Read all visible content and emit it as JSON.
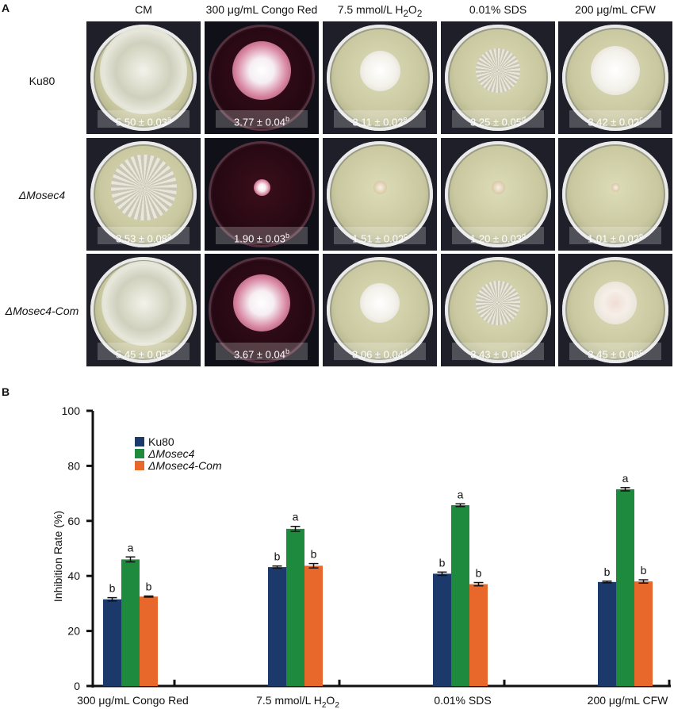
{
  "panel_a": {
    "letter": "A",
    "column_headers": [
      "CM",
      "300 μg/mL Congo Red",
      "7.5 mmol/L H",
      "0.01% SDS",
      "200 μg/mL CFW"
    ],
    "h2o2_header": {
      "prefix": "7.5 mmol/L H",
      "sub1": "2",
      "mid": "O",
      "sub2": "2"
    },
    "rows": [
      {
        "label": "Ku80",
        "italic": false,
        "values": [
          "5.50 ± 0.03",
          "3.77 ± 0.04",
          "3.11 ± 0.02",
          "3.25 ± 0.05",
          "3.42 ± 0.02"
        ],
        "letters": [
          "a",
          "b",
          "e",
          "d",
          "c"
        ]
      },
      {
        "label": "ΔMosec4",
        "italic": true,
        "values": [
          "3.53 ± 0.08",
          "1.90 ± 0.03",
          "1.51 ± 0.02",
          "1.20 ± 0.03",
          "1.01 ± 0.02"
        ],
        "letters": [
          "a",
          "b",
          "c",
          "d",
          "e"
        ]
      },
      {
        "label": "ΔMosec4-Com",
        "italic": true,
        "values": [
          "5.45 ± 0.05",
          "3.67 ± 0.04",
          "3.06 ± 0.04",
          "3.43 ± 0.08",
          "3.45 ± 0.08"
        ],
        "letters": [
          "a",
          "b",
          "d",
          "c",
          "c"
        ]
      }
    ]
  },
  "panel_b": {
    "letter": "B"
  },
  "chart_data": {
    "type": "bar",
    "title": "",
    "xlabel": "",
    "ylabel": "Inhibition Rate (%)",
    "ylim": [
      0,
      100
    ],
    "yticks": [
      0,
      20,
      40,
      60,
      80,
      100
    ],
    "grid": false,
    "legend_position": "top-left",
    "categories": [
      "300 μg/mL Congo Red",
      "7.5 mmol/L H2O2",
      "0.01% SDS",
      "200 μg/mL CFW"
    ],
    "category_labels": [
      {
        "text": "300 μg/mL Congo Red"
      },
      {
        "text": "7.5 mmol/L H",
        "sub1": "2",
        "mid": "O",
        "sub2": "2"
      },
      {
        "text": "0.01% SDS"
      },
      {
        "text": "200 μg/mL CFW"
      }
    ],
    "series": [
      {
        "name": "Ku80",
        "italic": false,
        "color": "#1b3a6b",
        "values": [
          31.5,
          43.2,
          40.8,
          37.8
        ],
        "errors": [
          0.6,
          0.4,
          0.6,
          0.3
        ],
        "letters": [
          "b",
          "b",
          "b",
          "b"
        ]
      },
      {
        "name": "ΔMosec4",
        "italic": true,
        "color": "#1e8a3e",
        "values": [
          46.0,
          57.1,
          65.7,
          71.5
        ],
        "errors": [
          0.9,
          0.9,
          0.5,
          0.6
        ],
        "letters": [
          "a",
          "a",
          "a",
          "a"
        ]
      },
      {
        "name": "ΔMosec4-Com",
        "italic": true,
        "color": "#e8672a",
        "values": [
          32.5,
          43.7,
          37.0,
          38.0
        ],
        "errors": [
          0.2,
          0.8,
          0.6,
          0.6
        ],
        "letters": [
          "b",
          "b",
          "b",
          "b"
        ]
      }
    ]
  }
}
